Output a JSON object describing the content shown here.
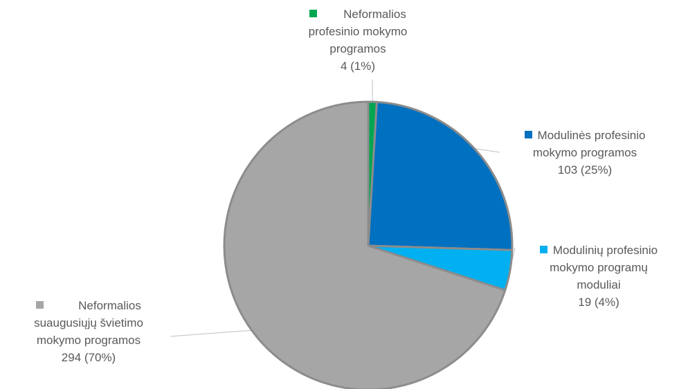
{
  "chart_data": {
    "type": "pie",
    "title": "",
    "slices": [
      {
        "label_lines": [
          "Neformalios",
          "profesinio mokymo",
          "programos"
        ],
        "value": 4,
        "percent": 1,
        "value_text": "4 (1%)",
        "color": "#00a650"
      },
      {
        "label_lines": [
          "Modulinės profesinio",
          "mokymo programos"
        ],
        "value": 103,
        "percent": 25,
        "value_text": "103 (25%)",
        "color": "#0070c0"
      },
      {
        "label_lines": [
          "Modulinių profesinio",
          "mokymo programų",
          "moduliai"
        ],
        "value": 19,
        "percent": 4,
        "value_text": "19 (4%)",
        "color": "#00b0f0"
      },
      {
        "label_lines": [
          "Neformalios",
          "suaugusiųjų švietimo",
          "mokymo programos"
        ],
        "value": 294,
        "percent": 70,
        "value_text": "294 (70%)",
        "color": "#a6a6a6"
      }
    ]
  }
}
